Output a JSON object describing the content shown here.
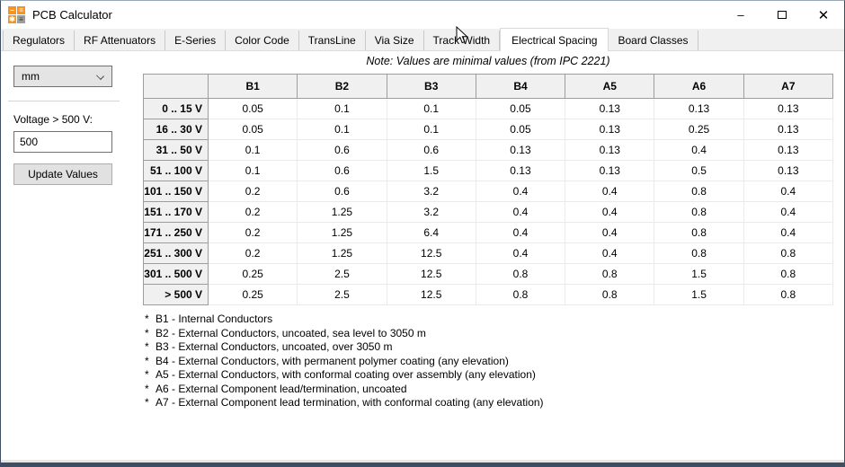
{
  "window": {
    "title": "PCB Calculator",
    "controls": {
      "minimize": "–",
      "close": "✕"
    }
  },
  "tabs": {
    "active": "Electrical Spacing",
    "items": [
      "Regulators",
      "RF Attenuators",
      "E-Series",
      "Color Code",
      "TransLine",
      "Via Size",
      "Track Width",
      "Electrical Spacing",
      "Board Classes"
    ]
  },
  "left_panel": {
    "units_value": "mm",
    "voltage_label": "Voltage > 500 V:",
    "voltage_value": "500",
    "update_button_label": "Update Values"
  },
  "note": "Note: Values are minimal values (from IPC 2221)",
  "table": {
    "columns": [
      "B1",
      "B2",
      "B3",
      "B4",
      "A5",
      "A6",
      "A7"
    ],
    "rows": [
      {
        "label": "0 .. 15 V",
        "values": [
          "0.05",
          "0.1",
          "0.1",
          "0.05",
          "0.13",
          "0.13",
          "0.13"
        ]
      },
      {
        "label": "16 .. 30 V",
        "values": [
          "0.05",
          "0.1",
          "0.1",
          "0.05",
          "0.13",
          "0.25",
          "0.13"
        ]
      },
      {
        "label": "31 .. 50 V",
        "values": [
          "0.1",
          "0.6",
          "0.6",
          "0.13",
          "0.13",
          "0.4",
          "0.13"
        ]
      },
      {
        "label": "51 .. 100 V",
        "values": [
          "0.1",
          "0.6",
          "1.5",
          "0.13",
          "0.13",
          "0.5",
          "0.13"
        ]
      },
      {
        "label": "101 .. 150 V",
        "values": [
          "0.2",
          "0.6",
          "3.2",
          "0.4",
          "0.4",
          "0.8",
          "0.4"
        ]
      },
      {
        "label": "151 .. 170 V",
        "values": [
          "0.2",
          "1.25",
          "3.2",
          "0.4",
          "0.4",
          "0.8",
          "0.4"
        ]
      },
      {
        "label": "171 .. 250 V",
        "values": [
          "0.2",
          "1.25",
          "6.4",
          "0.4",
          "0.4",
          "0.8",
          "0.4"
        ]
      },
      {
        "label": "251 .. 300 V",
        "values": [
          "0.2",
          "1.25",
          "12.5",
          "0.4",
          "0.4",
          "0.8",
          "0.8"
        ]
      },
      {
        "label": "301 .. 500 V",
        "values": [
          "0.25",
          "2.5",
          "12.5",
          "0.8",
          "0.8",
          "1.5",
          "0.8"
        ]
      },
      {
        "label": "> 500 V",
        "values": [
          "0.25",
          "2.5",
          "12.5",
          "0.8",
          "0.8",
          "1.5",
          "0.8"
        ]
      }
    ]
  },
  "footnote_marker": "*",
  "footnotes": [
    "B1 - Internal Conductors",
    "B2 - External Conductors, uncoated, sea level to 3050 m",
    "B3 - External Conductors, uncoated, over 3050 m",
    "B4 - External Conductors, with permanent polymer coating (any elevation)",
    "A5 - External Conductors, with conformal coating over assembly (any elevation)",
    "A6 - External Component lead/termination, uncoated",
    "A7 - External Component lead termination, with conformal coating (any elevation)"
  ],
  "icon_tiles": [
    "−",
    "=",
    "✱",
    "≡"
  ],
  "colors": {
    "window_border": "#3f4f63",
    "icon_orange": "#f7941d",
    "tab_strip_bg": "#f0f0f0",
    "header_cell_bg": "#f0f0f0"
  }
}
